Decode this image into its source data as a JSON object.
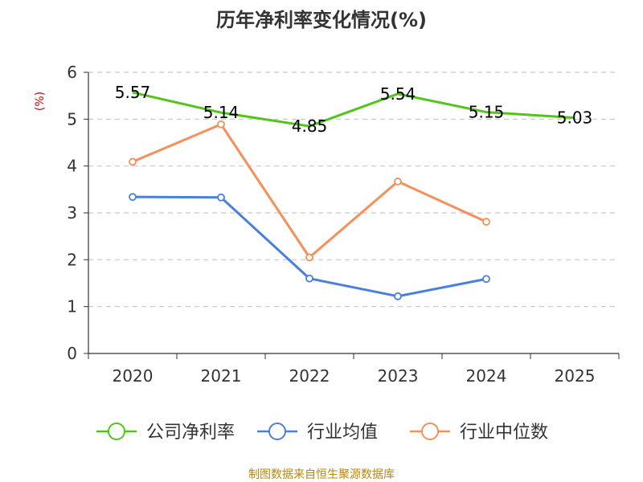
{
  "chart_data": {
    "type": "line",
    "title": "历年净利率变化情况(%)",
    "ylabel": "(%)",
    "xlabel": "",
    "categories": [
      "2020",
      "2021",
      "2022",
      "2023",
      "2024",
      "2025"
    ],
    "ylim": [
      0,
      6
    ],
    "yticks": [
      0,
      1,
      2,
      3,
      4,
      5,
      6
    ],
    "grid": "horizontal dashed",
    "legend": "bottom-center",
    "series": [
      {
        "name": "公司净利率",
        "color": "#52c41a",
        "values": [
          5.57,
          5.14,
          4.85,
          5.54,
          5.15,
          5.03
        ],
        "labels": [
          "5.57",
          "5.14",
          "4.85",
          "5.54",
          "5.15",
          "5.03"
        ]
      },
      {
        "name": "行业均值",
        "color": "#4a7fdb",
        "values": [
          3.34,
          3.33,
          1.6,
          1.22,
          1.59,
          null
        ]
      },
      {
        "name": "行业中位数",
        "color": "#f5905a",
        "values": [
          4.09,
          4.89,
          2.05,
          3.67,
          2.81,
          null
        ]
      }
    ]
  },
  "footer": {
    "source": "制图数据来自恒生聚源数据库"
  }
}
